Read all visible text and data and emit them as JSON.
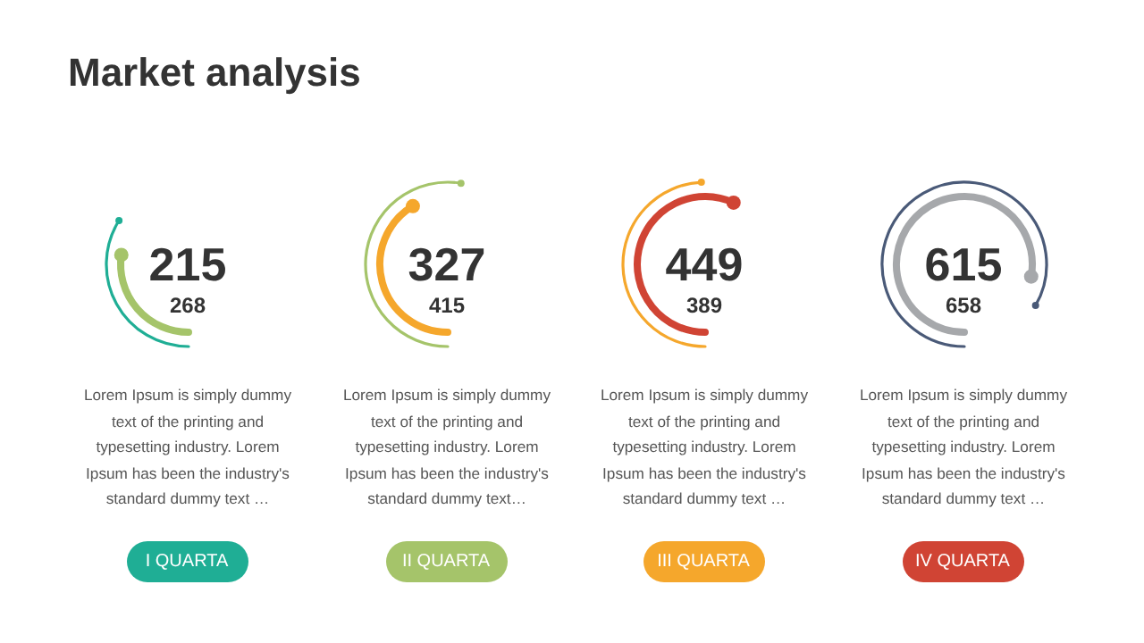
{
  "chart_data": [
    {
      "type": "other",
      "title": "Market analysis",
      "data_labels": true,
      "xlabel": "I QUARTA",
      "color": "#1fae95",
      "annotations": [
        "Lorem Ipsum is simply dummy text of the printing and typesetting industry. Lorem Ipsum has been the industry's standard dummy text …"
      ],
      "values": [
        215,
        268
      ],
      "colors": [
        "#a5c46a",
        "#1fae95"
      ]
    },
    {
      "type": "other",
      "data_labels": true,
      "xlabel": "II QUARTA",
      "color": "#a5c46a",
      "annotations": [
        "Lorem Ipsum is simply dummy text of the printing and typesetting industry. Lorem Ipsum has been the industry's standard dummy text…"
      ],
      "values": [
        327,
        415
      ],
      "colors": [
        "#f5a72c",
        "#a5c46a"
      ]
    },
    {
      "type": "other",
      "data_labels": true,
      "xlabel": "III QUARTA",
      "color": "#f5a72c",
      "annotations": [
        "Lorem Ipsum is simply dummy text of the printing and typesetting industry. Lorem Ipsum has been the industry's standard dummy text …"
      ],
      "values": [
        449,
        389
      ],
      "colors": [
        "#d04434",
        "#f5a72c"
      ]
    },
    {
      "type": "other",
      "data_labels": true,
      "xlabel": "IV QUARTA",
      "color": "#d04434",
      "annotations": [
        "Lorem Ipsum is simply dummy text of the printing and typesetting industry. Lorem Ipsum has been the industry's standard dummy text …"
      ],
      "values": [
        615,
        658
      ],
      "colors": [
        "#a6a8ab",
        "#4a5a78"
      ]
    }
  ]
}
